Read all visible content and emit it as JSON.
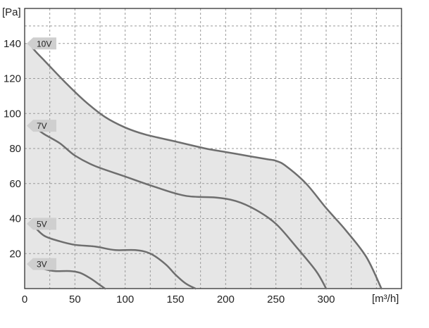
{
  "chart_data": {
    "type": "line",
    "title": "",
    "xlabel": "[m³/h]",
    "ylabel": "[Pa]",
    "xlim": [
      0,
      375
    ],
    "ylim": [
      0,
      160
    ],
    "x_ticks": [
      0,
      50,
      100,
      150,
      200,
      250,
      300
    ],
    "y_ticks": [
      20,
      40,
      60,
      80,
      100,
      120,
      140
    ],
    "grid": true,
    "grid_style": "dashed",
    "fill_under": "10V",
    "colors": {
      "curve": "#6e6e6e",
      "fill": "#e6e6e6",
      "label_bg": "#cfcfcf",
      "grid": "#9a9a9a",
      "axis": "#222222"
    },
    "series": [
      {
        "name": "10V",
        "x": [
          5,
          10,
          20,
          40,
          60,
          80,
          100,
          120,
          150,
          180,
          200,
          220,
          240,
          250,
          260,
          280,
          300,
          320,
          340,
          355
        ],
        "y": [
          140,
          136,
          130,
          118,
          107,
          98,
          92,
          88,
          84,
          80,
          78,
          76,
          74,
          73,
          70,
          60,
          46,
          33,
          18,
          0
        ]
      },
      {
        "name": "7V",
        "x": [
          5,
          10,
          20,
          35,
          50,
          70,
          100,
          130,
          160,
          190,
          210,
          230,
          250,
          270,
          290,
          300
        ],
        "y": [
          93,
          92,
          88,
          83,
          76,
          70,
          64,
          58,
          53,
          52,
          50,
          45,
          37,
          24,
          10,
          0
        ]
      },
      {
        "name": "5V",
        "x": [
          5,
          10,
          20,
          35,
          50,
          70,
          90,
          110,
          125,
          140,
          150,
          160,
          170
        ],
        "y": [
          37,
          35,
          30,
          27,
          25,
          24,
          22,
          22,
          20,
          14,
          8,
          3,
          0
        ]
      },
      {
        "name": "3V",
        "x": [
          5,
          10,
          20,
          30,
          45,
          55,
          65,
          75,
          80
        ],
        "y": [
          14,
          13,
          11,
          10,
          10,
          9,
          6,
          2,
          0
        ]
      }
    ]
  }
}
